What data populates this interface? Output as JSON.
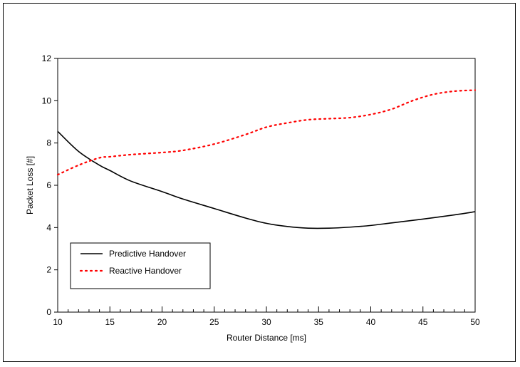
{
  "chart_data": {
    "type": "line",
    "xlabel": "Router Distance [ms]",
    "ylabel": "Packet Loss [#]",
    "xlim": [
      10,
      50
    ],
    "ylim": [
      0,
      12
    ],
    "x_ticks": [
      10,
      15,
      20,
      25,
      30,
      35,
      40,
      45,
      50
    ],
    "y_ticks": [
      0,
      2,
      4,
      6,
      8,
      10,
      12
    ],
    "x_minor_step": 1,
    "grid": false,
    "legend_position": "bottom-left",
    "series": [
      {
        "name": "Predictive Handover",
        "color": "#000000",
        "style": "solid",
        "x": [
          10,
          12,
          14,
          15,
          17,
          20,
          22,
          25,
          28,
          30,
          32,
          34,
          36,
          38,
          40,
          42,
          45,
          48,
          50
        ],
        "y": [
          8.55,
          7.6,
          6.95,
          6.7,
          6.2,
          5.7,
          5.35,
          4.9,
          4.45,
          4.2,
          4.05,
          3.97,
          3.97,
          4.02,
          4.1,
          4.22,
          4.4,
          4.6,
          4.75
        ]
      },
      {
        "name": "Reactive  Handover",
        "color": "#ff0000",
        "style": "dotted",
        "x": [
          10,
          12,
          14,
          15,
          17,
          20,
          22,
          25,
          28,
          30,
          32,
          34,
          36,
          38,
          40,
          42,
          44,
          46,
          48,
          50
        ],
        "y": [
          6.5,
          6.95,
          7.3,
          7.35,
          7.45,
          7.55,
          7.65,
          7.95,
          8.4,
          8.75,
          8.95,
          9.1,
          9.15,
          9.2,
          9.35,
          9.6,
          10.0,
          10.3,
          10.45,
          10.5
        ]
      }
    ]
  }
}
